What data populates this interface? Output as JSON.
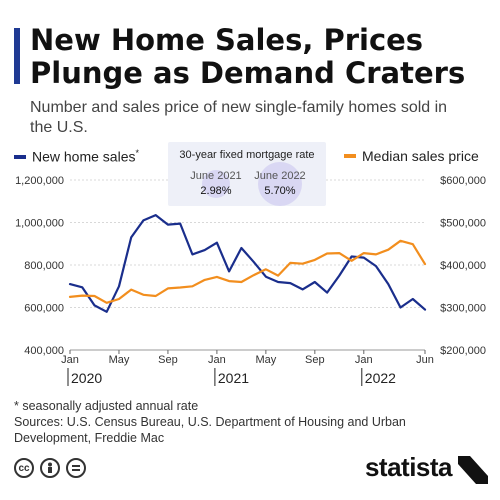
{
  "header": {
    "title": "New Home Sales, Prices Plunge as Demand Craters",
    "subtitle": "Number and sales price of new single-family homes sold in the U.S.",
    "accent_color": "#1f3a93"
  },
  "legend": {
    "left_label": "New home sales",
    "left_marker": "*",
    "right_label": "Median sales price",
    "left_color": "#1a2e8c",
    "right_color": "#f28e1e"
  },
  "annotation": {
    "title": "30-year fixed mortgage rate",
    "items": [
      {
        "label": "June 2021",
        "value": "2.98%"
      },
      {
        "label": "June 2022",
        "value": "5.70%"
      }
    ]
  },
  "chart_data": {
    "type": "line",
    "x": [
      "2020-01",
      "2020-02",
      "2020-03",
      "2020-04",
      "2020-05",
      "2020-06",
      "2020-07",
      "2020-08",
      "2020-09",
      "2020-10",
      "2020-11",
      "2020-12",
      "2021-01",
      "2021-02",
      "2021-03",
      "2021-04",
      "2021-05",
      "2021-06",
      "2021-07",
      "2021-08",
      "2021-09",
      "2021-10",
      "2021-11",
      "2021-12",
      "2022-01",
      "2022-02",
      "2022-03",
      "2022-04",
      "2022-05",
      "2022-06"
    ],
    "x_tick_labels": [
      "Jan",
      "May",
      "Sep",
      "Jan",
      "May",
      "Sep",
      "Jan",
      "Jun"
    ],
    "x_tick_dates": [
      "2020-01",
      "2020-05",
      "2020-09",
      "2021-01",
      "2021-05",
      "2021-09",
      "2022-01",
      "2022-06"
    ],
    "year_labels": [
      "2020",
      "2021",
      "2022"
    ],
    "year_dates": [
      "2020-01",
      "2021-01",
      "2022-01"
    ],
    "series": [
      {
        "name": "New home sales",
        "axis": "left",
        "values": [
          710000,
          695000,
          610000,
          580000,
          700000,
          930000,
          1010000,
          1035000,
          990000,
          995000,
          850000,
          870000,
          905000,
          770000,
          880000,
          815000,
          745000,
          720000,
          715000,
          685000,
          720000,
          670000,
          750000,
          840000,
          835000,
          795000,
          710000,
          600000,
          640000,
          590000
        ]
      },
      {
        "name": "Median sales price",
        "axis": "right",
        "values": [
          325000,
          328000,
          327000,
          311000,
          320000,
          342000,
          330000,
          327000,
          345000,
          347000,
          350000,
          365000,
          372000,
          362000,
          360000,
          376000,
          390000,
          375000,
          405000,
          403000,
          412000,
          427000,
          428000,
          410000,
          428000,
          425000,
          436000,
          457000,
          449000,
          402000
        ]
      }
    ],
    "y_left_ticks": [
      "1,200,000",
      "1,000,000",
      "800,000",
      "600,000",
      "400,000"
    ],
    "y_left_range": [
      400000,
      1200000
    ],
    "y_right_ticks": [
      "$600,000",
      "$500,000",
      "$400,000",
      "$300,000",
      "$200,000"
    ],
    "y_right_range": [
      200000,
      600000
    ],
    "grid": true,
    "legend": "top"
  },
  "footnote": {
    "line1": "* seasonally adjusted annual rate",
    "line2": "Sources: U.S. Census Bureau, U.S. Department of Housing and Urban Development, Freddie Mac"
  },
  "footer": {
    "license_icons": [
      "cc-icon",
      "person-icon",
      "equals-icon"
    ],
    "cc_text": "cc",
    "brand": "statista"
  },
  "colors": {
    "grid": "#d8d8d8",
    "annotation_bg": "#eef0f8",
    "bubble": "#c9c3ee"
  }
}
